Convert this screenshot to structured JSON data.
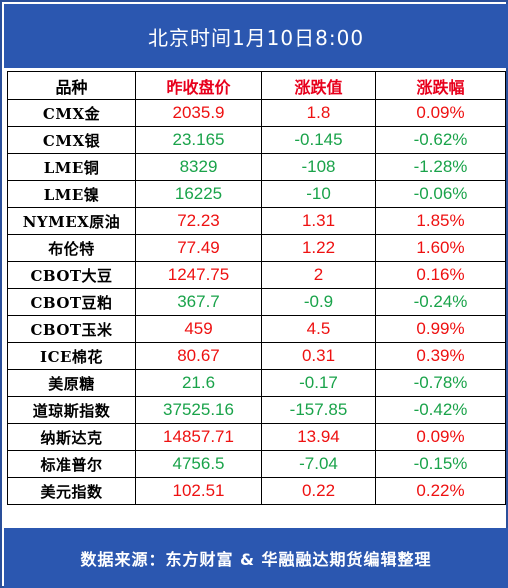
{
  "title": "北京时间1月10日8:00",
  "columns": [
    "品种",
    "昨收盘价",
    "涨跌值",
    "涨跌幅"
  ],
  "rows": [
    {
      "name": "CMX金",
      "close": "2035.9",
      "change": "1.8",
      "pct": "0.09%",
      "dir": "up"
    },
    {
      "name": "CMX银",
      "close": "23.165",
      "change": "-0.145",
      "pct": "-0.62%",
      "dir": "down"
    },
    {
      "name": "LME铜",
      "close": "8329",
      "change": "-108",
      "pct": "-1.28%",
      "dir": "down"
    },
    {
      "name": "LME镍",
      "close": "16225",
      "change": "-10",
      "pct": "-0.06%",
      "dir": "down"
    },
    {
      "name": "NYMEX原油",
      "close": "72.23",
      "change": "1.31",
      "pct": "1.85%",
      "dir": "up"
    },
    {
      "name": "布伦特",
      "close": "77.49",
      "change": "1.22",
      "pct": "1.60%",
      "dir": "up"
    },
    {
      "name": "CBOT大豆",
      "close": "1247.75",
      "change": "2",
      "pct": "0.16%",
      "dir": "up"
    },
    {
      "name": "CBOT豆粕",
      "close": "367.7",
      "change": "-0.9",
      "pct": "-0.24%",
      "dir": "down"
    },
    {
      "name": "CBOT玉米",
      "close": "459",
      "change": "4.5",
      "pct": "0.99%",
      "dir": "up"
    },
    {
      "name": "ICE棉花",
      "close": "80.67",
      "change": "0.31",
      "pct": "0.39%",
      "dir": "up"
    },
    {
      "name": "美原糖",
      "close": "21.6",
      "change": "-0.17",
      "pct": "-0.78%",
      "dir": "down"
    },
    {
      "name": "道琼斯指数",
      "close": "37525.16",
      "change": "-157.85",
      "pct": "-0.42%",
      "dir": "down"
    },
    {
      "name": "纳斯达克",
      "close": "14857.71",
      "change": "13.94",
      "pct": "0.09%",
      "dir": "up"
    },
    {
      "name": "标准普尔",
      "close": "4756.5",
      "change": "-7.04",
      "pct": "-0.15%",
      "dir": "down"
    },
    {
      "name": "美元指数",
      "close": "102.51",
      "change": "0.22",
      "pct": "0.22%",
      "dir": "up"
    }
  ],
  "footer": "数据来源：东方财富 & 华融融达期货编辑整理",
  "colors": {
    "up": "#ee1111",
    "down": "#1aa34a",
    "header": "#2b57b0"
  }
}
